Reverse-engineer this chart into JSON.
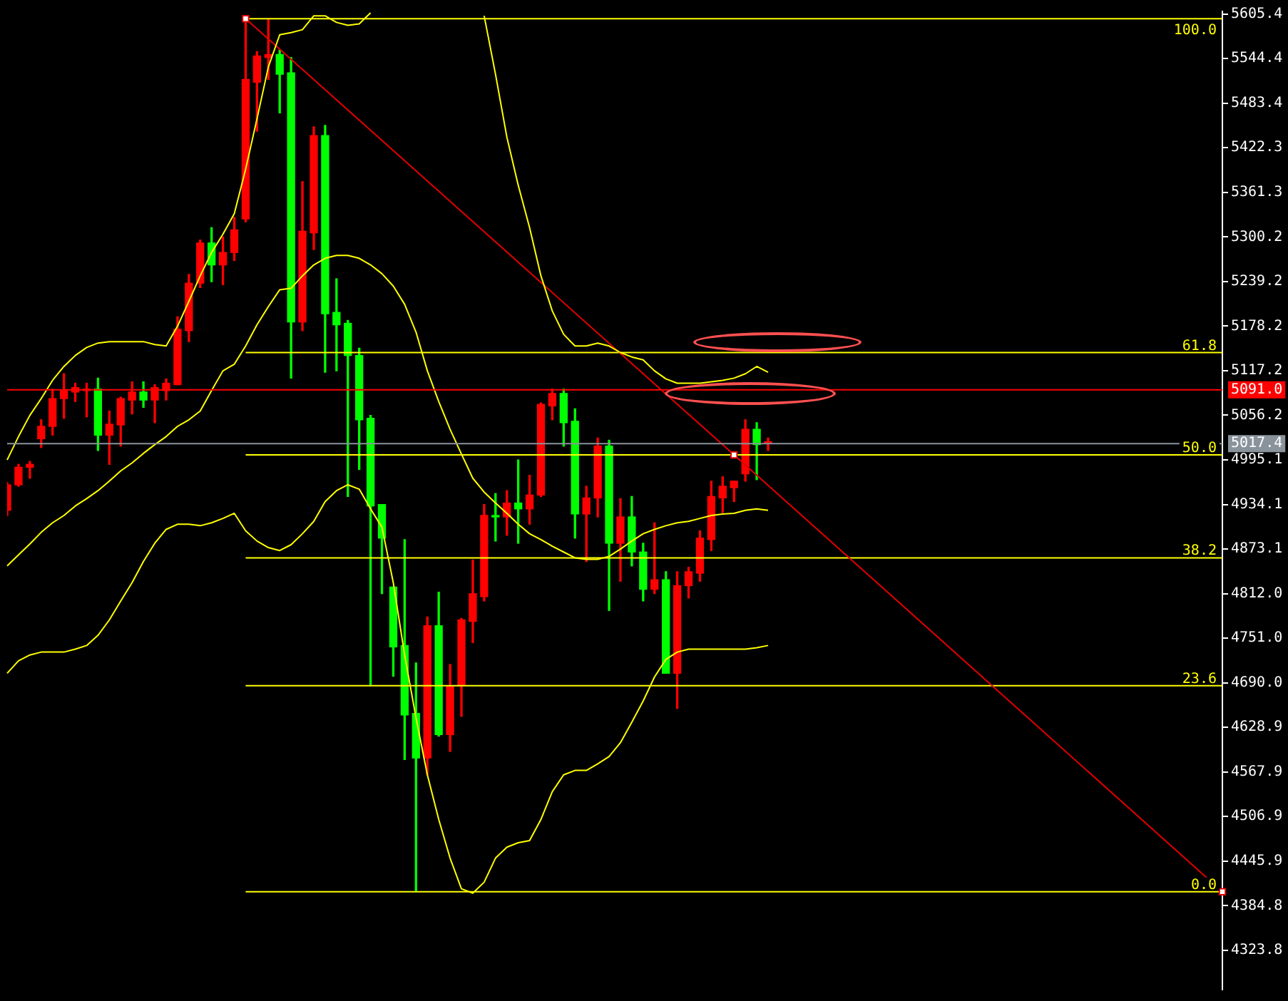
{
  "chart_data": {
    "type": "candlestick",
    "categories": [
      null,
      null,
      null,
      null,
      null,
      null,
      null,
      null,
      null,
      null,
      null,
      null,
      null,
      null,
      null,
      null,
      null,
      null,
      null,
      null,
      null,
      null,
      null,
      null,
      null,
      null,
      null,
      null,
      null,
      null,
      null,
      null,
      null,
      null,
      null,
      null,
      null,
      null,
      null,
      null,
      null,
      null,
      null,
      null,
      null,
      null,
      null,
      null,
      null,
      null,
      null,
      null,
      null,
      null,
      null,
      null,
      null,
      null,
      null,
      null,
      null,
      null,
      null,
      null,
      null,
      null,
      null,
      null,
      null,
      null,
      null,
      null,
      null,
      null,
      null,
      null,
      null,
      null,
      null,
      null,
      null,
      null,
      null,
      null,
      null,
      null,
      null,
      null,
      null,
      null,
      null,
      null,
      null,
      null,
      null,
      null,
      null,
      null,
      null,
      null,
      null,
      null,
      null,
      null,
      null,
      null,
      null,
      null
    ],
    "ohlc": [
      [
        4926,
        4964,
        4919,
        4961
      ],
      [
        4961,
        4989,
        4959,
        4985
      ],
      [
        4985,
        4993,
        4970,
        4989
      ],
      [
        5024,
        5050,
        5012,
        5041
      ],
      [
        5041,
        5092,
        5029,
        5079
      ],
      [
        5079,
        5113,
        5052,
        5090
      ],
      [
        5088,
        5100,
        5075,
        5094
      ],
      [
        5090,
        5100,
        5054,
        5092
      ],
      [
        5092,
        5107,
        5008,
        5029
      ],
      [
        5029,
        5062,
        4989,
        5044
      ],
      [
        5043,
        5081,
        5014,
        5079
      ],
      [
        5077,
        5102,
        5058,
        5088
      ],
      [
        5088,
        5102,
        5067,
        5077
      ],
      [
        5077,
        5098,
        5046,
        5094
      ],
      [
        5090,
        5106,
        5077,
        5100
      ],
      [
        5098,
        5191,
        5098,
        5174
      ],
      [
        5172,
        5249,
        5157,
        5237
      ],
      [
        5237,
        5296,
        5231,
        5292
      ],
      [
        5292,
        5313,
        5239,
        5262
      ],
      [
        5262,
        5300,
        5235,
        5279
      ],
      [
        5279,
        5327,
        5268,
        5310
      ],
      [
        5325,
        5599,
        5321,
        5516
      ],
      [
        5512,
        5554,
        5445,
        5548
      ],
      [
        5546,
        5598,
        5516,
        5550
      ],
      [
        5550,
        5556,
        5470,
        5523
      ],
      [
        5525,
        5546,
        5107,
        5184
      ],
      [
        5184,
        5376,
        5172,
        5308
      ],
      [
        5306,
        5451,
        5283,
        5439
      ],
      [
        5439,
        5453,
        5115,
        5195
      ],
      [
        5197,
        5243,
        5117,
        5180
      ],
      [
        5182,
        5186,
        4945,
        5138
      ],
      [
        5138,
        5148,
        4982,
        5050
      ],
      [
        5052,
        5056,
        4686,
        4932
      ],
      [
        4934,
        4934,
        4812,
        4888
      ],
      [
        4821,
        4821,
        4699,
        4739
      ],
      [
        4741,
        4886,
        4585,
        4646
      ],
      [
        4648,
        4717,
        4404,
        4587
      ],
      [
        4587,
        4780,
        4564,
        4768
      ],
      [
        4768,
        4814,
        4617,
        4619
      ],
      [
        4619,
        4715,
        4596,
        4686
      ],
      [
        4686,
        4778,
        4644,
        4776
      ],
      [
        4774,
        4858,
        4745,
        4812
      ],
      [
        4808,
        4934,
        4802,
        4919
      ],
      [
        4919,
        4949,
        4884,
        4917
      ],
      [
        4917,
        4953,
        4892,
        4936
      ],
      [
        4936,
        4995,
        4881,
        4928
      ],
      [
        4928,
        4974,
        4907,
        4947
      ],
      [
        4947,
        5073,
        4945,
        5071
      ],
      [
        5069,
        5092,
        5050,
        5086
      ],
      [
        5086,
        5092,
        5014,
        5046
      ],
      [
        5048,
        5065,
        4888,
        4921
      ],
      [
        4921,
        4959,
        4856,
        4943
      ],
      [
        4943,
        5025,
        4917,
        5014
      ],
      [
        5014,
        5022,
        4789,
        4881
      ],
      [
        4881,
        4942,
        4829,
        4917
      ],
      [
        4917,
        4945,
        4850,
        4869
      ],
      [
        4869,
        4881,
        4802,
        4818
      ],
      [
        4818,
        4909,
        4812,
        4831
      ],
      [
        4831,
        4842,
        4703,
        4703
      ],
      [
        4703,
        4842,
        4655,
        4823
      ],
      [
        4823,
        4848,
        4806,
        4842
      ],
      [
        4840,
        4898,
        4829,
        4888
      ],
      [
        4886,
        4966,
        4871,
        4945
      ],
      [
        4943,
        4972,
        4923,
        4959
      ],
      [
        4957,
        4966,
        4938,
        4966
      ],
      [
        4976,
        5050,
        4966,
        5037
      ],
      [
        5037,
        5046,
        4968,
        5016
      ],
      [
        5018,
        5025,
        5008,
        5020
      ],
      null,
      null,
      null,
      null,
      null,
      null,
      null,
      null,
      null,
      null,
      null,
      null,
      null,
      null,
      null,
      null,
      null,
      null,
      null,
      null,
      null,
      null,
      null,
      null,
      null,
      null,
      null,
      null,
      null,
      null,
      null,
      null,
      null,
      null,
      null,
      null,
      null,
      null,
      null,
      null
    ],
    "colors": [
      "#ff0000",
      "#ff0000",
      "#ff0000",
      "#ff0000",
      "#ff0000",
      "#ff0000",
      "#ff0000",
      "#ff0000",
      "#00ff00",
      "#ff0000",
      "#ff0000",
      "#ff0000",
      "#00ff00",
      "#ff0000",
      "#ff0000",
      "#ff0000",
      "#ff0000",
      "#ff0000",
      "#00ff00",
      "#ff0000",
      "#ff0000",
      "#ff0000",
      "#ff0000",
      "#ff0000",
      "#00ff00",
      "#00ff00",
      "#ff0000",
      "#ff0000",
      "#00ff00",
      "#00ff00",
      "#00ff00",
      "#00ff00",
      "#00ff00",
      "#00ff00",
      "#00ff00",
      "#00ff00",
      "#00ff00",
      "#ff0000",
      "#00ff00",
      "#ff0000",
      "#ff0000",
      "#ff0000",
      "#ff0000",
      "#00ff00",
      "#ff0000",
      "#00ff00",
      "#ff0000",
      "#ff0000",
      "#ff0000",
      "#00ff00",
      "#00ff00",
      "#ff0000",
      "#ff0000",
      "#00ff00",
      "#ff0000",
      "#00ff00",
      "#00ff00",
      "#ff0000",
      "#00ff00",
      "#ff0000",
      "#ff0000",
      "#ff0000",
      "#ff0000",
      "#ff0000",
      "#ff0000",
      "#ff0000",
      "#00ff00",
      "#ff0000",
      null,
      null,
      null,
      null,
      null,
      null,
      null,
      null,
      null,
      null,
      null,
      null,
      null,
      null,
      null,
      null,
      null,
      null,
      null,
      null,
      null,
      null,
      null,
      null,
      null,
      null,
      null,
      null,
      null,
      null,
      null,
      null,
      null,
      null,
      null,
      null,
      null,
      null,
      null,
      null
    ],
    "series": [
      {
        "type": "line",
        "color": "#ffff00",
        "values": [
          4995,
          5027,
          5056,
          5079,
          5104,
          5123,
          5138,
          5149,
          5155,
          5157,
          5157,
          5157,
          5157,
          5153,
          5151,
          5178,
          5212,
          5247,
          5279,
          5304,
          5332,
          5393,
          5462,
          5533,
          5577,
          5580,
          5584,
          5603,
          5603,
          5594,
          5590,
          5592,
          5607,
          null,
          null,
          null,
          null,
          null,
          null,
          null,
          null,
          null,
          5603,
          5523,
          5437,
          5371,
          5313,
          5247,
          5199,
          5167,
          5151,
          5151,
          5155,
          5151,
          5142,
          5136,
          5132,
          5117,
          5106,
          5100,
          5100,
          5100,
          5102,
          5104,
          5107,
          5113,
          5123,
          5115,
          null,
          null,
          null,
          null,
          null,
          null,
          null,
          null,
          null,
          null,
          null,
          null,
          null,
          null,
          null,
          null,
          null,
          null,
          null,
          null,
          null,
          null,
          null,
          null,
          null,
          null,
          null,
          null,
          null,
          null,
          null,
          null,
          null,
          null,
          null,
          null,
          null,
          null,
          null,
          null
        ]
      },
      {
        "type": "line",
        "color": "#ffff00",
        "values": [
          4850,
          4865,
          4880,
          4896,
          4909,
          4919,
          4932,
          4942,
          4953,
          4966,
          4980,
          4991,
          5004,
          5016,
          5027,
          5041,
          5050,
          5062,
          5090,
          5117,
          5126,
          5151,
          5180,
          5205,
          5228,
          5230,
          5247,
          5262,
          5271,
          5275,
          5275,
          5271,
          5262,
          5250,
          5233,
          5208,
          5170,
          5117,
          5075,
          5037,
          5003,
          4970,
          4951,
          4936,
          4922,
          4907,
          4894,
          4886,
          4877,
          4869,
          4861,
          4859,
          4859,
          4863,
          4873,
          4884,
          4894,
          4900,
          4905,
          4909,
          4911,
          4915,
          4919,
          4921,
          4922,
          4926,
          4928,
          4926,
          null,
          null,
          null,
          null,
          null,
          null,
          null,
          null,
          null,
          null,
          null,
          null,
          null,
          null,
          null,
          null,
          null,
          null,
          null,
          null,
          null,
          null,
          null,
          null,
          null,
          null,
          null,
          null,
          null,
          null,
          null,
          null,
          null,
          null,
          null,
          null,
          null,
          null,
          null,
          null
        ]
      },
      {
        "type": "line",
        "color": "#ffff00",
        "values": [
          4703,
          4720,
          4728,
          4732,
          4732,
          4732,
          4736,
          4741,
          4755,
          4776,
          4802,
          4827,
          4856,
          4881,
          4900,
          4907,
          4907,
          4905,
          4909,
          4915,
          4922,
          4898,
          4884,
          4875,
          4871,
          4879,
          4894,
          4911,
          4938,
          4953,
          4961,
          4955,
          4928,
          4903,
          4827,
          4728,
          4642,
          4564,
          4503,
          4450,
          4408,
          4402,
          4417,
          4450,
          4465,
          4471,
          4474,
          4503,
          4541,
          4564,
          4570,
          4570,
          4579,
          4589,
          4608,
          4636,
          4665,
          4698,
          4722,
          4732,
          4736,
          4736,
          4736,
          4736,
          4736,
          4736,
          4738,
          4741,
          null,
          null,
          null,
          null,
          null,
          null,
          null,
          null,
          null,
          null,
          null,
          null,
          null,
          null,
          null,
          null,
          null,
          null,
          null,
          null,
          null,
          null,
          null,
          null,
          null,
          null,
          null,
          null,
          null,
          null,
          null,
          null,
          null,
          null,
          null,
          null,
          null,
          null,
          null,
          null
        ]
      },
      {
        "type": "line",
        "color": "#e00000",
        "marker": "square",
        "values": [
          null,
          null,
          null,
          null,
          null,
          null,
          null,
          null,
          null,
          null,
          null,
          null,
          null,
          null,
          null,
          null,
          null,
          null,
          null,
          null,
          null,
          5599,
          null,
          null,
          null,
          null,
          null,
          null,
          null,
          null,
          null,
          null,
          null,
          null,
          null,
          null,
          null,
          null,
          null,
          null,
          null,
          null,
          null,
          null,
          null,
          null,
          null,
          null,
          null,
          null,
          null,
          null,
          null,
          null,
          null,
          null,
          null,
          null,
          null,
          null,
          null,
          null,
          null,
          null,
          5002,
          null,
          null,
          null,
          null,
          null,
          null,
          null,
          null,
          null,
          null,
          null,
          null,
          null,
          null,
          null,
          null,
          null,
          null,
          null,
          null,
          null,
          null,
          null,
          null,
          null,
          null,
          null,
          null,
          null,
          null,
          null,
          null,
          null,
          null,
          null,
          null,
          null,
          null,
          null,
          null,
          null,
          null,
          4404
        ]
      },
      {
        "type": "line",
        "name": "100.0",
        "color": "#ffff00",
        "values": [
          null,
          null,
          null,
          null,
          null,
          null,
          null,
          null,
          null,
          null,
          null,
          null,
          null,
          null,
          null,
          null,
          null,
          null,
          null,
          null,
          null,
          5599,
          null,
          null,
          null,
          null,
          null,
          null,
          null,
          null,
          null,
          null,
          null,
          null,
          null,
          null,
          null,
          null,
          null,
          null,
          null,
          null,
          null,
          null,
          null,
          null,
          null,
          null,
          null,
          null,
          null,
          null,
          null,
          null,
          null,
          null,
          null,
          null,
          null,
          null,
          null,
          null,
          null,
          null,
          null,
          null,
          null,
          null,
          null,
          null,
          null,
          null,
          null,
          null,
          null,
          null,
          null,
          null,
          null,
          null,
          null,
          null,
          null,
          null,
          null,
          null,
          null,
          null,
          null,
          null,
          null,
          null,
          null,
          null,
          null,
          null,
          null,
          null,
          null,
          null,
          null,
          null,
          null,
          null,
          null,
          null,
          null,
          5599
        ]
      },
      {
        "type": "line",
        "name": "61.8",
        "color": "#ffff00",
        "values": [
          null,
          null,
          null,
          null,
          null,
          null,
          null,
          null,
          null,
          null,
          null,
          null,
          null,
          null,
          null,
          null,
          null,
          null,
          null,
          null,
          null,
          5142,
          null,
          null,
          null,
          null,
          null,
          null,
          null,
          null,
          null,
          null,
          null,
          null,
          null,
          null,
          null,
          null,
          null,
          null,
          null,
          null,
          null,
          null,
          null,
          null,
          null,
          null,
          null,
          null,
          null,
          null,
          null,
          null,
          null,
          null,
          null,
          null,
          null,
          null,
          null,
          null,
          null,
          null,
          null,
          null,
          null,
          null,
          null,
          null,
          null,
          null,
          null,
          null,
          null,
          null,
          null,
          null,
          null,
          null,
          null,
          null,
          null,
          null,
          null,
          null,
          null,
          null,
          null,
          null,
          null,
          null,
          null,
          null,
          null,
          null,
          null,
          null,
          null,
          null,
          null,
          null,
          null,
          null,
          null,
          null,
          null,
          5142
        ]
      },
      {
        "type": "line",
        "name": "50.0",
        "color": "#ffff00",
        "values": [
          null,
          null,
          null,
          null,
          null,
          null,
          null,
          null,
          null,
          null,
          null,
          null,
          null,
          null,
          null,
          null,
          null,
          null,
          null,
          null,
          null,
          5002,
          null,
          null,
          null,
          null,
          null,
          null,
          null,
          null,
          null,
          null,
          null,
          null,
          null,
          null,
          null,
          null,
          null,
          null,
          null,
          null,
          null,
          null,
          null,
          null,
          null,
          null,
          null,
          null,
          null,
          null,
          null,
          null,
          null,
          null,
          null,
          null,
          null,
          null,
          null,
          null,
          null,
          null,
          null,
          null,
          null,
          null,
          null,
          null,
          null,
          null,
          null,
          null,
          null,
          null,
          null,
          null,
          null,
          null,
          null,
          null,
          null,
          null,
          null,
          null,
          null,
          null,
          null,
          null,
          null,
          null,
          null,
          null,
          null,
          null,
          null,
          null,
          null,
          null,
          null,
          null,
          null,
          null,
          null,
          null,
          null,
          5002
        ]
      },
      {
        "type": "line",
        "name": "38.2",
        "color": "#ffff00",
        "values": [
          null,
          null,
          null,
          null,
          null,
          null,
          null,
          null,
          null,
          null,
          null,
          null,
          null,
          null,
          null,
          null,
          null,
          null,
          null,
          null,
          null,
          4861,
          null,
          null,
          null,
          null,
          null,
          null,
          null,
          null,
          null,
          null,
          null,
          null,
          null,
          null,
          null,
          null,
          null,
          null,
          null,
          null,
          null,
          null,
          null,
          null,
          null,
          null,
          null,
          null,
          null,
          null,
          null,
          null,
          null,
          null,
          null,
          null,
          null,
          null,
          null,
          null,
          null,
          null,
          null,
          null,
          null,
          null,
          null,
          null,
          null,
          null,
          null,
          null,
          null,
          null,
          null,
          null,
          null,
          null,
          null,
          null,
          null,
          null,
          null,
          null,
          null,
          null,
          null,
          null,
          null,
          null,
          null,
          null,
          null,
          null,
          null,
          null,
          null,
          null,
          null,
          null,
          null,
          null,
          null,
          null,
          null,
          4861
        ]
      },
      {
        "type": "line",
        "name": "23.6",
        "color": "#ffff00",
        "values": [
          null,
          null,
          null,
          null,
          null,
          null,
          null,
          null,
          null,
          null,
          null,
          null,
          null,
          null,
          null,
          null,
          null,
          null,
          null,
          null,
          null,
          4686,
          null,
          null,
          null,
          null,
          null,
          null,
          null,
          null,
          null,
          null,
          null,
          null,
          null,
          null,
          null,
          null,
          null,
          null,
          null,
          null,
          null,
          null,
          null,
          null,
          null,
          null,
          null,
          null,
          null,
          null,
          null,
          null,
          null,
          null,
          null,
          null,
          null,
          null,
          null,
          null,
          null,
          null,
          null,
          null,
          null,
          null,
          null,
          null,
          null,
          null,
          null,
          null,
          null,
          null,
          null,
          null,
          null,
          null,
          null,
          null,
          null,
          null,
          null,
          null,
          null,
          null,
          null,
          null,
          null,
          null,
          null,
          null,
          null,
          null,
          null,
          null,
          null,
          null,
          null,
          null,
          null,
          null,
          null,
          null,
          null,
          4686
        ]
      },
      {
        "type": "line",
        "name": "0.0",
        "color": "#ffff00",
        "values": [
          null,
          null,
          null,
          null,
          null,
          null,
          null,
          null,
          null,
          null,
          null,
          null,
          null,
          null,
          null,
          null,
          null,
          null,
          null,
          null,
          null,
          4404,
          null,
          null,
          null,
          null,
          null,
          null,
          null,
          null,
          null,
          null,
          null,
          null,
          null,
          null,
          null,
          null,
          null,
          null,
          null,
          null,
          null,
          null,
          null,
          null,
          null,
          null,
          null,
          null,
          null,
          null,
          null,
          null,
          null,
          null,
          null,
          null,
          null,
          null,
          null,
          null,
          null,
          null,
          null,
          null,
          null,
          null,
          null,
          null,
          null,
          null,
          null,
          null,
          null,
          null,
          null,
          null,
          null,
          null,
          null,
          null,
          null,
          null,
          null,
          null,
          null,
          null,
          null,
          null,
          null,
          null,
          null,
          null,
          null,
          null,
          null,
          null,
          null,
          null,
          null,
          null,
          null,
          null,
          null,
          null,
          null,
          4404
        ]
      }
    ],
    "ylim": [
      4270,
      5609
    ],
    "yticks": [
      4323.8,
      4384.8,
      4445.9,
      4506.9,
      4567.9,
      4628.9,
      {
        "value": 4690,
        "label": "4690.0"
      },
      {
        "value": 4751,
        "label": "4751.0"
      },
      {
        "value": 4812,
        "label": "4812.0"
      },
      4873.1,
      4934.1,
      4995.1,
      5056.2,
      5117.2,
      5178.2,
      5239.2,
      5300.2,
      5361.3,
      5422.3,
      5483.4,
      5544.4,
      5605.4
    ],
    "ref_lines": [
      {
        "axis": "y",
        "value": 5091,
        "label": "5091.0",
        "color": "#ff0000"
      },
      {
        "axis": "y",
        "value": 5017.4,
        "label": "5017.4",
        "color": "#8a939c"
      }
    ],
    "tick_labels": "y",
    "marker": "none"
  }
}
